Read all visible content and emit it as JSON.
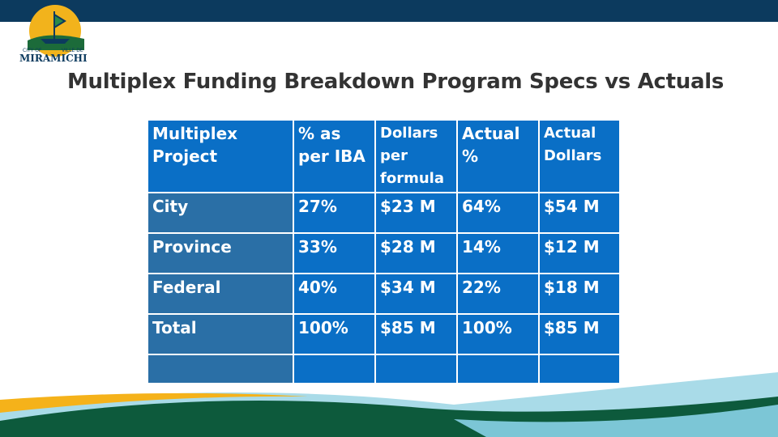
{
  "logo": {
    "top_left": "CITY OF",
    "top_right": "VILLE DE",
    "name": "MIRAMICHI"
  },
  "title": "Multiplex Funding Breakdown Program Specs vs Actuals",
  "table": {
    "headers": [
      "Multiplex Project",
      "% as per IBA",
      "Dollars per formula",
      "Actual %",
      "Actual Dollars"
    ],
    "rows": [
      [
        "City",
        "27%",
        "$23 M",
        "64%",
        "$54 M"
      ],
      [
        "Province",
        "33%",
        "$28 M",
        "14%",
        "$12 M"
      ],
      [
        "Federal",
        "40%",
        "$34 M",
        "22%",
        "$18 M"
      ],
      [
        "Total",
        "100%",
        "$85 M",
        "100%",
        "$85 M"
      ]
    ]
  }
}
